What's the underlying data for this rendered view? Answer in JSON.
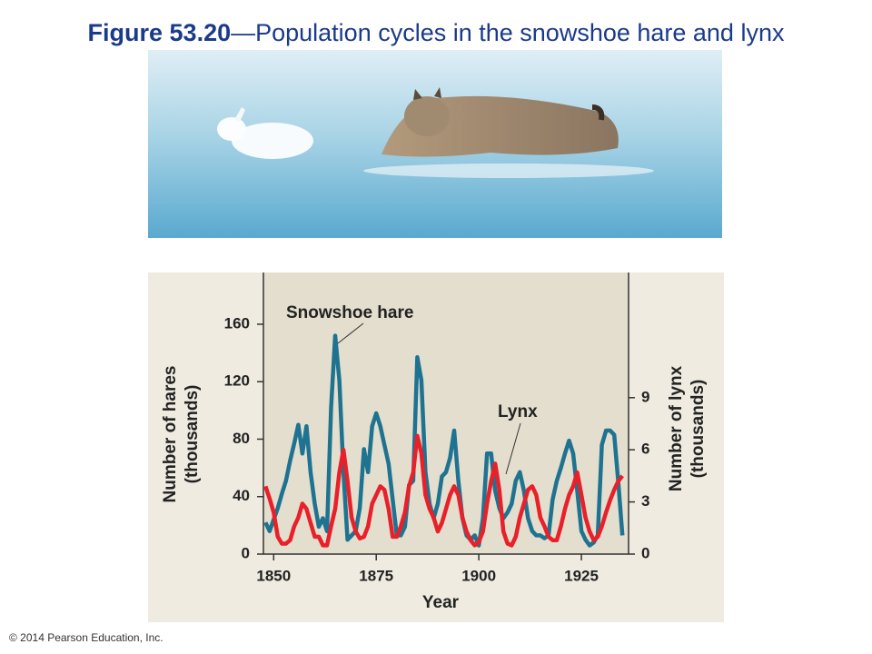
{
  "title_bold": "Figure 53.20",
  "title_rest": "—Population cycles in the snowshoe hare and lynx",
  "copyright": "© 2014 Pearson Education, Inc.",
  "chart_data": {
    "type": "line",
    "x": [
      1848,
      1849,
      1850,
      1851,
      1852,
      1853,
      1854,
      1855,
      1856,
      1857,
      1858,
      1859,
      1860,
      1861,
      1862,
      1863,
      1864,
      1865,
      1866,
      1867,
      1868,
      1869,
      1870,
      1871,
      1872,
      1873,
      1874,
      1875,
      1876,
      1877,
      1878,
      1879,
      1880,
      1881,
      1882,
      1883,
      1884,
      1885,
      1886,
      1887,
      1888,
      1889,
      1890,
      1891,
      1892,
      1893,
      1894,
      1895,
      1896,
      1897,
      1898,
      1899,
      1900,
      1901,
      1902,
      1903,
      1904,
      1905,
      1906,
      1907,
      1908,
      1909,
      1910,
      1911,
      1912,
      1913,
      1914,
      1915,
      1916,
      1917,
      1918,
      1919,
      1920,
      1921,
      1922,
      1923,
      1924,
      1925,
      1926,
      1927,
      1928,
      1929,
      1930,
      1931,
      1932,
      1933,
      1934,
      1935
    ],
    "series": [
      {
        "name": "Snowshoe hare",
        "color": "#1e7391",
        "values": [
          22,
          16,
          24,
          32,
          42,
          51,
          65,
          77,
          90,
          70,
          89,
          57,
          35,
          19,
          25,
          16,
          102,
          152,
          121,
          57,
          10,
          13,
          16,
          32,
          73,
          57,
          89,
          98,
          89,
          76,
          63,
          38,
          13,
          13,
          19,
          48,
          51,
          137,
          121,
          57,
          35,
          25,
          35,
          54,
          57,
          67,
          86,
          51,
          25,
          13,
          10,
          13,
          6,
          25,
          70,
          70,
          44,
          32,
          25,
          29,
          35,
          51,
          57,
          44,
          25,
          16,
          13,
          13,
          11,
          13,
          38,
          51,
          60,
          70,
          79,
          70,
          44,
          16,
          10,
          6,
          8,
          13,
          76,
          86,
          86,
          83,
          50,
          13
        ]
      },
      {
        "name": "Lynx",
        "color": "#e8202a",
        "axis": "y2",
        "values": [
          3.9,
          3.2,
          2.4,
          1.0,
          0.6,
          0.6,
          0.8,
          1.6,
          2.1,
          2.9,
          2.6,
          1.8,
          1.0,
          1.0,
          0.5,
          0.5,
          1.6,
          2.6,
          4.7,
          6.0,
          4.2,
          2.1,
          1.3,
          0.9,
          1.0,
          1.6,
          2.9,
          3.4,
          3.9,
          3.7,
          2.6,
          1.0,
          1.0,
          1.6,
          2.4,
          3.9,
          4.7,
          6.8,
          5.8,
          3.4,
          2.6,
          2.1,
          1.3,
          1.8,
          2.6,
          3.4,
          3.9,
          3.4,
          2.1,
          1.3,
          0.8,
          0.5,
          0.7,
          1.3,
          2.9,
          4.2,
          5.2,
          3.7,
          1.3,
          0.6,
          0.5,
          1.0,
          2.1,
          2.9,
          3.7,
          3.9,
          3.4,
          2.1,
          1.6,
          1.0,
          0.8,
          0.8,
          1.6,
          2.6,
          3.4,
          3.9,
          4.7,
          3.4,
          2.1,
          1.3,
          0.8,
          1.0,
          1.6,
          2.4,
          3.1,
          3.7,
          4.2,
          4.5
        ]
      }
    ],
    "xlabel": "Year",
    "ylabel": [
      "Number of hares",
      "(thousands)"
    ],
    "y2label": [
      "Number of lynx",
      "(thousands)"
    ],
    "xlim": [
      1847.5,
      1936.5
    ],
    "xticks": [
      1850,
      1875,
      1900,
      1925
    ],
    "ylim": [
      0,
      196
    ],
    "yticks": [
      0,
      40,
      80,
      120,
      160
    ],
    "y2lim": [
      0,
      16.2
    ],
    "y2ticks": [
      0,
      3,
      6,
      9
    ]
  }
}
